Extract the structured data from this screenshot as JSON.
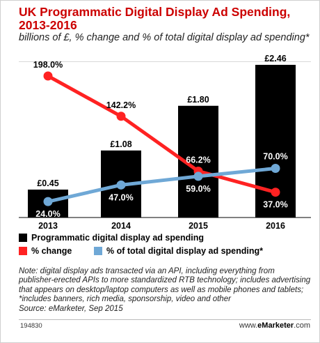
{
  "header": {
    "title": "UK Programmatic Digital Display Ad Spending, 2013-2016",
    "subtitle": "billions of £, % change and % of total digital display ad spending*"
  },
  "chart_data": {
    "type": "bar",
    "categories": [
      "2013",
      "2014",
      "2015",
      "2016"
    ],
    "series": [
      {
        "name": "Programmatic digital display ad spending",
        "type": "bar",
        "values": [
          0.45,
          1.08,
          1.8,
          2.46
        ],
        "labels": [
          "£0.45",
          "£1.08",
          "£1.80",
          "£2.46"
        ],
        "color": "#000000"
      },
      {
        "name": "% change",
        "type": "line",
        "values": [
          198.0,
          142.2,
          66.2,
          37.0
        ],
        "labels": [
          "198.0%",
          "142.2%",
          "66.2%",
          "37.0%"
        ],
        "color": "#ff2222"
      },
      {
        "name": "% of total digital display ad spending*",
        "type": "line",
        "values": [
          24.0,
          47.0,
          59.0,
          70.0
        ],
        "labels": [
          "24.0%",
          "47.0%",
          "59.0%",
          "70.0%"
        ],
        "color": "#6fa8d6"
      }
    ]
  },
  "legend": {
    "bars": "Programmatic digital display ad spending",
    "change": "% change",
    "share": "% of total digital display ad spending*"
  },
  "note": "Note: digital display ads transacted via an API, including everything from publisher-erected APIs to more standardized RTB technology; includes advertising that appears on desktop/laptop computers as well as mobile phones and tablets; *includes banners, rich media, sponsorship, video and other",
  "source": "Source: eMarketer, Sep 2015",
  "footer": {
    "id": "194830",
    "brand_prefix": "www.",
    "brand_name": "eMarketer",
    "brand_suffix": ".com"
  }
}
